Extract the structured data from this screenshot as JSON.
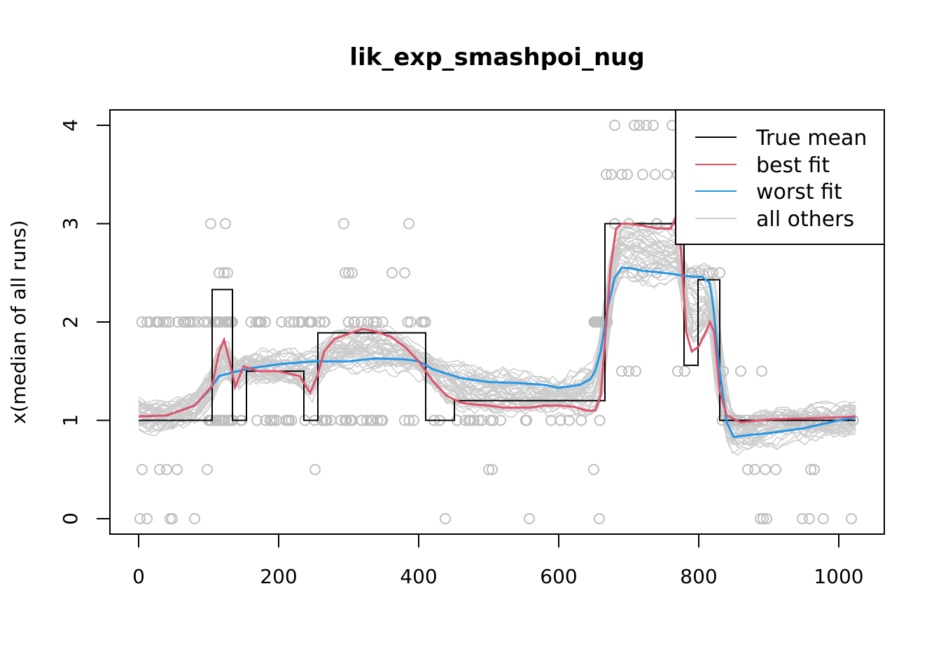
{
  "chart_data": {
    "type": "line",
    "title": "lik_exp_smashpoi_nug",
    "xlabel": "",
    "ylabel": "x(median of all runs)",
    "xlim": [
      -20,
      1045
    ],
    "ylim": [
      -0.15,
      4.15
    ],
    "xticks": [
      0,
      200,
      400,
      600,
      800,
      1000
    ],
    "yticks": [
      0,
      1,
      2,
      3,
      4
    ],
    "legend_position": "top-right",
    "legend": [
      {
        "label": "True mean",
        "color": "#000000"
      },
      {
        "label": "best fit",
        "color": "#DF536B"
      },
      {
        "label": "worst fit",
        "color": "#2297E6"
      },
      {
        "label": "all others",
        "color": "#CCCCCC"
      }
    ],
    "true_mean": {
      "x": [
        0,
        105,
        105,
        134,
        134,
        154,
        154,
        236,
        236,
        256,
        256,
        410,
        410,
        451,
        451,
        666,
        666,
        779,
        779,
        799,
        799,
        830,
        830,
        1024
      ],
      "y": [
        1,
        1,
        2.33,
        2.33,
        1,
        1,
        1.5,
        1.5,
        1,
        1,
        1.89,
        1.89,
        1,
        1,
        1.2,
        1.2,
        3,
        3,
        1.56,
        1.56,
        2.43,
        2.43,
        1,
        1
      ]
    },
    "best_fit": {
      "x": [
        0,
        40,
        80,
        105,
        115,
        122,
        130,
        138,
        150,
        170,
        200,
        230,
        245,
        255,
        265,
        280,
        300,
        320,
        340,
        360,
        380,
        400,
        420,
        440,
        460,
        480,
        500,
        520,
        540,
        560,
        580,
        600,
        620,
        640,
        652,
        660,
        666,
        674,
        682,
        690,
        700,
        720,
        740,
        760,
        770,
        776,
        782,
        790,
        800,
        810,
        816,
        822,
        830,
        840,
        860,
        900,
        950,
        1000,
        1024
      ],
      "y": [
        1.04,
        1.05,
        1.15,
        1.35,
        1.7,
        1.82,
        1.6,
        1.34,
        1.55,
        1.5,
        1.5,
        1.45,
        1.28,
        1.45,
        1.7,
        1.83,
        1.88,
        1.93,
        1.9,
        1.85,
        1.75,
        1.6,
        1.4,
        1.25,
        1.18,
        1.16,
        1.15,
        1.13,
        1.13,
        1.13,
        1.15,
        1.15,
        1.14,
        1.1,
        1.1,
        1.25,
        1.8,
        2.55,
        2.95,
        3.0,
        3.0,
        2.98,
        2.95,
        2.95,
        3.1,
        2.6,
        1.9,
        1.7,
        1.75,
        1.9,
        2.0,
        1.9,
        1.3,
        1.05,
        0.98,
        1.01,
        1.02,
        1.03,
        1.04
      ]
    },
    "worst_fit": {
      "x": [
        0,
        40,
        80,
        100,
        115,
        130,
        160,
        200,
        250,
        300,
        340,
        380,
        400,
        420,
        460,
        500,
        540,
        580,
        600,
        630,
        645,
        652,
        660,
        670,
        680,
        690,
        700,
        720,
        750,
        780,
        795,
        805,
        815,
        820,
        830,
        840,
        850,
        870,
        900,
        950,
        1000,
        1024
      ],
      "y": [
        1.04,
        1.05,
        1.15,
        1.3,
        1.45,
        1.48,
        1.53,
        1.57,
        1.6,
        1.6,
        1.63,
        1.62,
        1.6,
        1.52,
        1.43,
        1.39,
        1.38,
        1.36,
        1.33,
        1.36,
        1.42,
        1.5,
        1.7,
        2.15,
        2.45,
        2.55,
        2.55,
        2.52,
        2.5,
        2.47,
        2.46,
        2.46,
        2.4,
        2.2,
        1.5,
        0.98,
        0.83,
        0.85,
        0.87,
        0.92,
        1.0,
        1.03
      ]
    },
    "observations_summary": "grey circles at integer and half-integer levels"
  }
}
